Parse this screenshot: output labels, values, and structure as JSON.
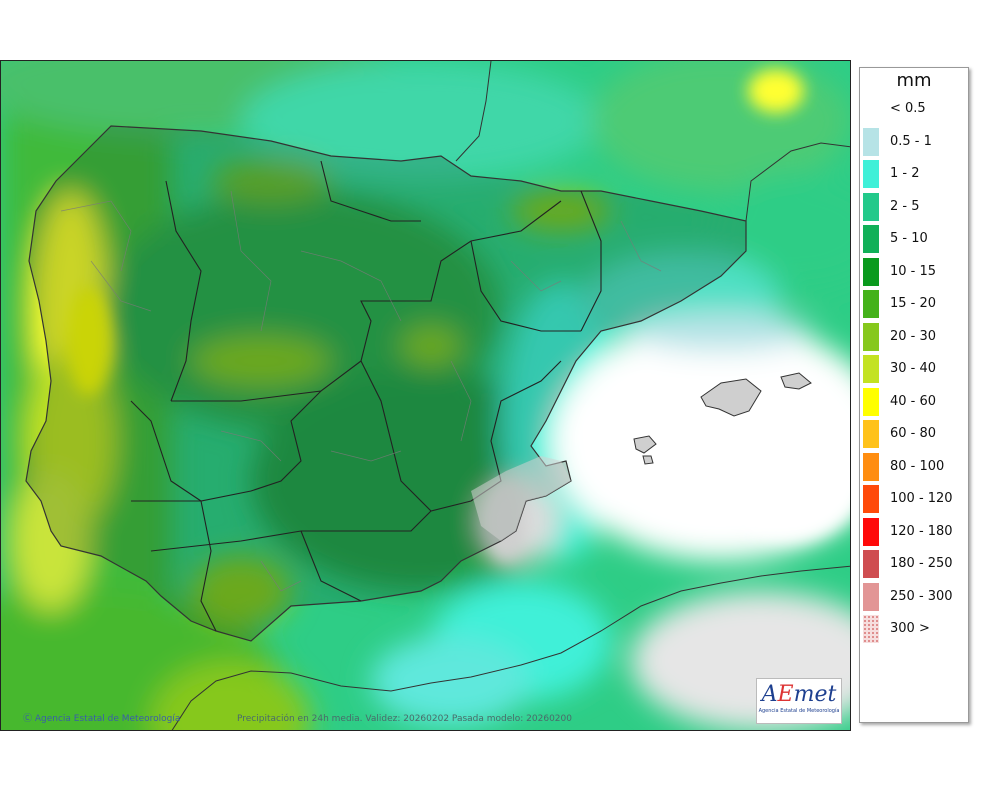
{
  "map": {
    "credit_left": "Agencia Estatal de Meteorología",
    "credit_center": "Precipitación en 24h media. Validez: 20260202 Pasada modelo: 20260200",
    "logo_main": "AEmet",
    "logo_sub": "Agencia Estatal de Meteorología",
    "colors": {
      "sea_base": "#2fd39a",
      "land_dim": "rgba(20,70,40,0.18)",
      "dry": "#f2f2f2",
      "border": "#333333"
    }
  },
  "legend": {
    "title": "mm",
    "items": [
      {
        "label": "< 0.5",
        "color": "#ffffff"
      },
      {
        "label": "0.5 - 1",
        "color": "#b6e3e6"
      },
      {
        "label": "1 - 2",
        "color": "#3ff0d8"
      },
      {
        "label": "2 - 5",
        "color": "#22c98a"
      },
      {
        "label": "5 - 10",
        "color": "#11b058"
      },
      {
        "label": "10 - 15",
        "color": "#0a9a1e"
      },
      {
        "label": "15 - 20",
        "color": "#44b21a"
      },
      {
        "label": "20 - 30",
        "color": "#86c81c"
      },
      {
        "label": "30 - 40",
        "color": "#c3e222"
      },
      {
        "label": "40 - 60",
        "color": "#ffff00"
      },
      {
        "label": "60 - 80",
        "color": "#ffc21a"
      },
      {
        "label": "80 - 100",
        "color": "#ff8d10"
      },
      {
        "label": "100 - 120",
        "color": "#ff4a0a"
      },
      {
        "label": "120 - 180",
        "color": "#ff0a0a"
      },
      {
        "label": "180 - 250",
        "color": "#cf4d50"
      },
      {
        "label": "250 - 300",
        "color": "#e29595"
      },
      {
        "label": "300 >",
        "color": "#f6dede"
      }
    ]
  }
}
